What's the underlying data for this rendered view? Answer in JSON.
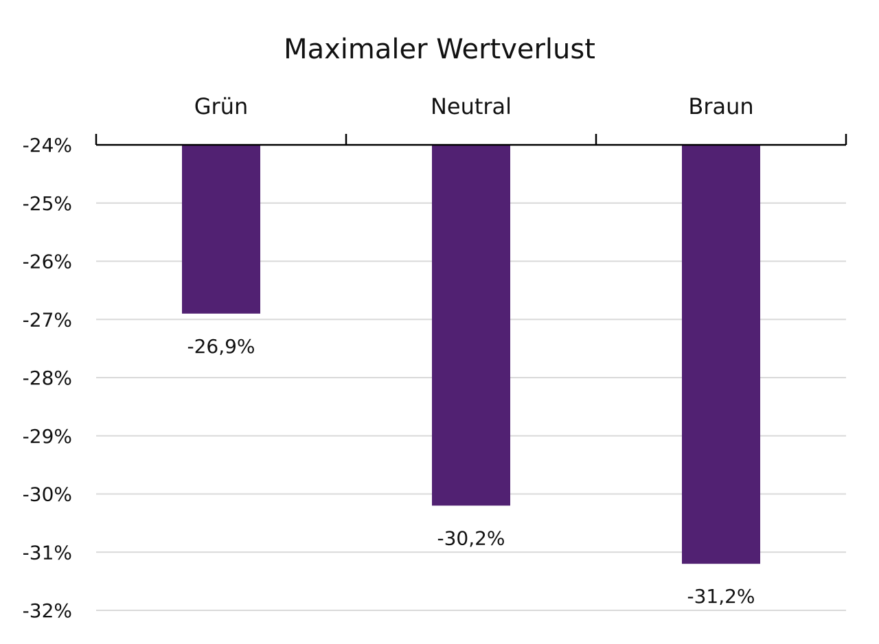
{
  "chart_data": {
    "type": "bar",
    "title": "Maximaler Wertverlust",
    "categories": [
      "Grün",
      "Neutral",
      "Braun"
    ],
    "values": [
      -26.9,
      -30.2,
      -31.2
    ],
    "data_labels": [
      "-26,9%",
      "-30,2%",
      "-31,2%"
    ],
    "yticks": [
      -24,
      -25,
      -26,
      -27,
      -28,
      -29,
      -30,
      -31,
      -32
    ],
    "ytick_labels": [
      "-24%",
      "-25%",
      "-26%",
      "-27%",
      "-28%",
      "-29%",
      "-30%",
      "-31%",
      "-32%"
    ],
    "ylim": [
      -32,
      -24
    ],
    "xaxis_position": "top",
    "grid": true,
    "bar_color": "#512172"
  }
}
